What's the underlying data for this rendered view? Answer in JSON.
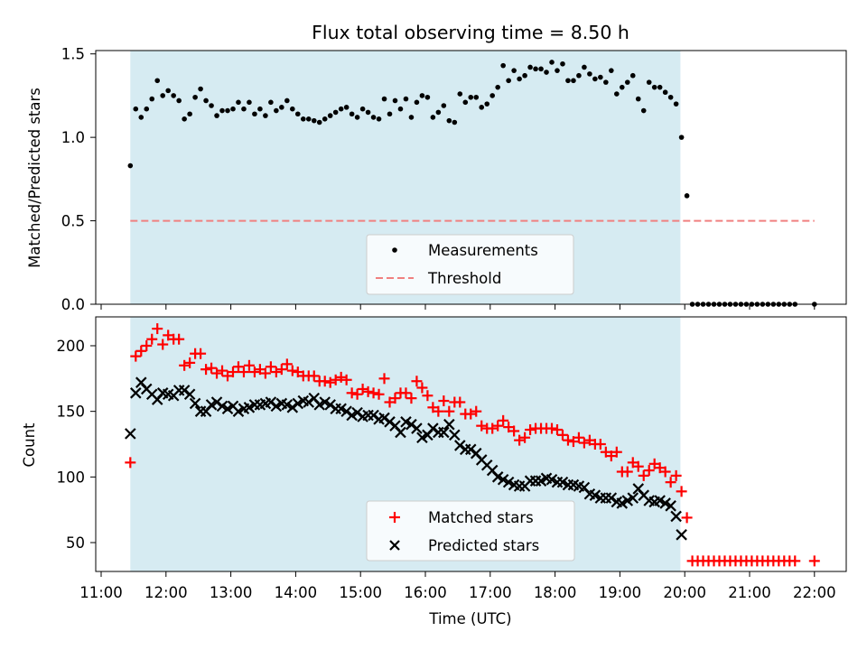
{
  "title": "Flux total observing time = 8.50 h",
  "colors": {
    "observing_window": "#add8e6",
    "measurement": "#000000",
    "threshold": "#f08080",
    "matched": "#ff0000",
    "predicted": "#000000"
  },
  "chart_data": [
    {
      "type": "scatter",
      "panel": "top",
      "title": "Flux total observing time = 8.50 h",
      "xlabel": "",
      "ylabel": "Matched/Predicted stars",
      "ylim": [
        0,
        1.52
      ],
      "yticks": [
        "0.0",
        "0.5",
        "1.0",
        "1.5"
      ],
      "shaded_window": [
        "11:27",
        "19:56"
      ],
      "legend": {
        "position": "lower-center",
        "entries": [
          "Measurements",
          "Threshold"
        ]
      },
      "threshold": {
        "name": "Threshold",
        "value": 0.5,
        "x_range": [
          "11:27",
          "22:00"
        ],
        "style": "dashed"
      },
      "series": [
        {
          "name": "Measurements",
          "x": [
            "11:27",
            "11:32",
            "11:37",
            "11:42",
            "11:47",
            "11:52",
            "11:57",
            "12:02",
            "12:07",
            "12:12",
            "12:17",
            "12:22",
            "12:27",
            "12:32",
            "12:37",
            "12:42",
            "12:47",
            "12:52",
            "12:57",
            "13:02",
            "13:07",
            "13:12",
            "13:17",
            "13:22",
            "13:27",
            "13:32",
            "13:37",
            "13:42",
            "13:47",
            "13:52",
            "13:57",
            "14:02",
            "14:07",
            "14:12",
            "14:17",
            "14:22",
            "14:27",
            "14:32",
            "14:37",
            "14:42",
            "14:47",
            "14:52",
            "14:57",
            "15:02",
            "15:07",
            "15:12",
            "15:17",
            "15:22",
            "15:27",
            "15:32",
            "15:37",
            "15:42",
            "15:47",
            "15:52",
            "15:57",
            "16:02",
            "16:07",
            "16:12",
            "16:17",
            "16:22",
            "16:27",
            "16:32",
            "16:37",
            "16:42",
            "16:47",
            "16:52",
            "16:57",
            "17:02",
            "17:07",
            "17:12",
            "17:17",
            "17:22",
            "17:27",
            "17:32",
            "17:37",
            "17:42",
            "17:47",
            "17:52",
            "17:57",
            "18:02",
            "18:07",
            "18:12",
            "18:17",
            "18:22",
            "18:27",
            "18:32",
            "18:37",
            "18:42",
            "18:47",
            "18:52",
            "18:57",
            "19:02",
            "19:07",
            "19:12",
            "19:17",
            "19:22",
            "19:27",
            "19:32",
            "19:37",
            "19:42",
            "19:47",
            "19:52",
            "19:57",
            "20:02",
            "20:07",
            "20:12",
            "20:17",
            "20:22",
            "20:27",
            "20:32",
            "20:37",
            "20:42",
            "20:47",
            "20:52",
            "20:57",
            "21:02",
            "21:07",
            "21:12",
            "21:17",
            "21:22",
            "21:27",
            "21:32",
            "21:37",
            "21:42",
            "22:00"
          ],
          "y": [
            0.83,
            1.17,
            1.12,
            1.17,
            1.23,
            1.34,
            1.25,
            1.28,
            1.25,
            1.22,
            1.11,
            1.14,
            1.24,
            1.29,
            1.22,
            1.19,
            1.13,
            1.16,
            1.16,
            1.17,
            1.21,
            1.17,
            1.21,
            1.14,
            1.17,
            1.13,
            1.21,
            1.16,
            1.18,
            1.22,
            1.17,
            1.14,
            1.11,
            1.11,
            1.1,
            1.09,
            1.11,
            1.13,
            1.15,
            1.17,
            1.18,
            1.14,
            1.12,
            1.17,
            1.15,
            1.12,
            1.11,
            1.23,
            1.14,
            1.22,
            1.17,
            1.23,
            1.12,
            1.21,
            1.25,
            1.24,
            1.12,
            1.15,
            1.19,
            1.1,
            1.09,
            1.26,
            1.21,
            1.24,
            1.24,
            1.18,
            1.2,
            1.25,
            1.3,
            1.43,
            1.34,
            1.4,
            1.35,
            1.37,
            1.42,
            1.41,
            1.41,
            1.39,
            1.45,
            1.4,
            1.44,
            1.34,
            1.34,
            1.37,
            1.42,
            1.38,
            1.35,
            1.36,
            1.33,
            1.4,
            1.26,
            1.3,
            1.33,
            1.37,
            1.23,
            1.16,
            1.33,
            1.3,
            1.3,
            1.27,
            1.24,
            1.2,
            1.0,
            0.65,
            0.0,
            0.0,
            0.0,
            0.0,
            0.0,
            0.0,
            0.0,
            0.0,
            0.0,
            0.0,
            0.0,
            0.0,
            0.0,
            0.0,
            0.0,
            0.0,
            0.0,
            0.0,
            0.0,
            0.0,
            0.0
          ]
        }
      ]
    },
    {
      "type": "scatter",
      "panel": "bottom",
      "xlabel": "Time (UTC)",
      "ylabel": "Count",
      "ylim": [
        28,
        222
      ],
      "yticks": [
        "50",
        "100",
        "150",
        "200"
      ],
      "xticks": [
        "11:00",
        "12:00",
        "13:00",
        "14:00",
        "15:00",
        "16:00",
        "17:00",
        "18:00",
        "19:00",
        "20:00",
        "21:00",
        "22:00"
      ],
      "xlim": [
        "11:00",
        "22:30"
      ],
      "shaded_window": [
        "11:27",
        "19:56"
      ],
      "legend": {
        "position": "lower-center",
        "entries": [
          "Matched stars",
          "Predicted stars"
        ]
      },
      "series": [
        {
          "name": "Matched stars",
          "marker": "+",
          "x": [
            "11:27",
            "11:32",
            "11:37",
            "11:42",
            "11:47",
            "11:52",
            "11:57",
            "12:02",
            "12:07",
            "12:12",
            "12:17",
            "12:22",
            "12:27",
            "12:32",
            "12:37",
            "12:42",
            "12:47",
            "12:52",
            "12:57",
            "13:02",
            "13:07",
            "13:12",
            "13:17",
            "13:22",
            "13:27",
            "13:32",
            "13:37",
            "13:42",
            "13:47",
            "13:52",
            "13:57",
            "14:02",
            "14:07",
            "14:12",
            "14:17",
            "14:22",
            "14:27",
            "14:32",
            "14:37",
            "14:42",
            "14:47",
            "14:52",
            "14:57",
            "15:02",
            "15:07",
            "15:12",
            "15:17",
            "15:22",
            "15:27",
            "15:32",
            "15:37",
            "15:42",
            "15:47",
            "15:52",
            "15:57",
            "16:02",
            "16:07",
            "16:12",
            "16:17",
            "16:22",
            "16:27",
            "16:32",
            "16:37",
            "16:42",
            "16:47",
            "16:52",
            "16:57",
            "17:02",
            "17:07",
            "17:12",
            "17:17",
            "17:22",
            "17:27",
            "17:32",
            "17:37",
            "17:42",
            "17:47",
            "17:52",
            "17:57",
            "18:02",
            "18:07",
            "18:12",
            "18:17",
            "18:22",
            "18:27",
            "18:32",
            "18:37",
            "18:42",
            "18:47",
            "18:52",
            "18:57",
            "19:02",
            "19:07",
            "19:12",
            "19:17",
            "19:22",
            "19:27",
            "19:32",
            "19:37",
            "19:42",
            "19:47",
            "19:52",
            "19:57",
            "20:02",
            "20:07",
            "20:12",
            "20:17",
            "20:22",
            "20:27",
            "20:32",
            "20:37",
            "20:42",
            "20:47",
            "20:52",
            "20:57",
            "21:02",
            "21:07",
            "21:12",
            "21:17",
            "21:22",
            "21:27",
            "21:32",
            "21:37",
            "21:42",
            "22:00"
          ],
          "y": [
            111,
            192,
            196,
            200,
            205,
            213,
            201,
            208,
            205,
            205,
            185,
            187,
            194,
            194,
            182,
            183,
            179,
            181,
            177,
            180,
            184,
            180,
            185,
            180,
            182,
            179,
            184,
            180,
            182,
            186,
            181,
            180,
            177,
            177,
            177,
            173,
            173,
            172,
            174,
            176,
            174,
            164,
            163,
            167,
            165,
            164,
            163,
            175,
            157,
            160,
            164,
            164,
            160,
            173,
            168,
            162,
            153,
            150,
            158,
            150,
            157,
            157,
            148,
            148,
            150,
            139,
            137,
            137,
            139,
            143,
            138,
            135,
            128,
            130,
            136,
            137,
            137,
            137,
            137,
            136,
            132,
            128,
            127,
            130,
            126,
            128,
            125,
            125,
            119,
            116,
            119,
            104,
            104,
            111,
            108,
            101,
            105,
            110,
            107,
            104,
            96,
            101,
            89,
            69,
            36,
            36,
            36,
            36,
            36,
            36,
            36,
            36,
            36,
            36,
            36,
            36,
            36,
            36,
            36,
            36,
            36,
            36,
            36,
            36,
            36
          ]
        },
        {
          "name": "Predicted stars",
          "marker": "x",
          "x": [
            "11:27",
            "11:32",
            "11:37",
            "11:42",
            "11:47",
            "11:52",
            "11:57",
            "12:02",
            "12:07",
            "12:12",
            "12:17",
            "12:22",
            "12:27",
            "12:32",
            "12:37",
            "12:42",
            "12:47",
            "12:52",
            "12:57",
            "13:02",
            "13:07",
            "13:12",
            "13:17",
            "13:22",
            "13:27",
            "13:32",
            "13:37",
            "13:42",
            "13:47",
            "13:52",
            "13:57",
            "14:02",
            "14:07",
            "14:12",
            "14:17",
            "14:22",
            "14:27",
            "14:32",
            "14:37",
            "14:42",
            "14:47",
            "14:52",
            "14:57",
            "15:02",
            "15:07",
            "15:12",
            "15:17",
            "15:22",
            "15:27",
            "15:32",
            "15:37",
            "15:42",
            "15:47",
            "15:52",
            "15:57",
            "16:02",
            "16:07",
            "16:12",
            "16:17",
            "16:22",
            "16:27",
            "16:32",
            "16:37",
            "16:42",
            "16:47",
            "16:52",
            "16:57",
            "17:02",
            "17:07",
            "17:12",
            "17:17",
            "17:22",
            "17:27",
            "17:32",
            "17:37",
            "17:42",
            "17:47",
            "17:52",
            "17:57",
            "18:02",
            "18:07",
            "18:12",
            "18:17",
            "18:22",
            "18:27",
            "18:32",
            "18:37",
            "18:42",
            "18:47",
            "18:52",
            "18:57",
            "19:02",
            "19:07",
            "19:12",
            "19:17",
            "19:22",
            "19:27",
            "19:32",
            "19:37",
            "19:42",
            "19:47",
            "19:52",
            "19:57"
          ],
          "y": [
            133,
            164,
            172,
            167,
            163,
            159,
            164,
            163,
            162,
            166,
            166,
            163,
            156,
            150,
            150,
            155,
            157,
            154,
            152,
            154,
            150,
            152,
            153,
            155,
            155,
            156,
            157,
            154,
            156,
            155,
            153,
            156,
            158,
            157,
            160,
            155,
            157,
            155,
            152,
            152,
            150,
            147,
            149,
            146,
            147,
            147,
            144,
            145,
            142,
            139,
            134,
            142,
            140,
            137,
            130,
            132,
            137,
            134,
            134,
            140,
            132,
            124,
            121,
            121,
            118,
            113,
            109,
            105,
            100,
            98,
            96,
            94,
            93,
            93,
            97,
            97,
            97,
            99,
            98,
            96,
            96,
            94,
            94,
            93,
            92,
            87,
            86,
            84,
            84,
            84,
            81,
            80,
            82,
            84,
            91,
            86,
            82,
            81,
            82,
            80,
            78,
            70,
            56
          ]
        }
      ]
    }
  ]
}
